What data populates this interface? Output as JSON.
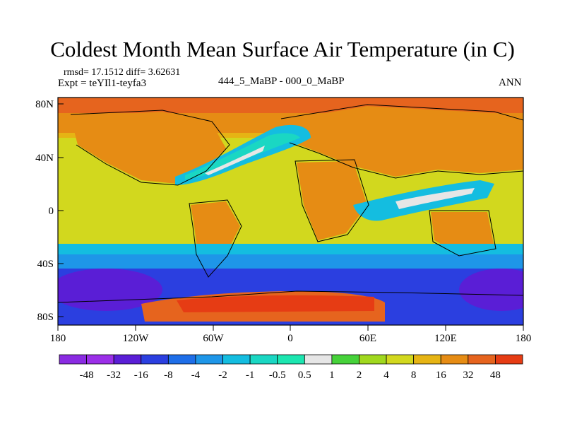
{
  "title": "Coldest Month Mean Surface Air Temperature (in C)",
  "stats": "rmsd= 17.1512 diff= 3.62631",
  "experiment_line": "Expt = teYIl1-teyfa3",
  "experiment_name": "444_5_MaBP - 000_0_MaBP",
  "season": "ANN",
  "lat_ticks": [
    "80N",
    "40N",
    "0",
    "40S",
    "80S"
  ],
  "lon_ticks": [
    "180",
    "120W",
    "60W",
    "0",
    "60E",
    "120E",
    "180"
  ],
  "colorbar": {
    "labels": [
      "-48",
      "-32",
      "-16",
      "-8",
      "-4",
      "-2",
      "-1",
      "-0.5",
      "0.5",
      "1",
      "2",
      "4",
      "8",
      "16",
      "32",
      "48"
    ],
    "colors": [
      "#9b2fe8",
      "#5a1ed6",
      "#2b3fe0",
      "#1e6ee8",
      "#1e96e8",
      "#14bde0",
      "#1ad7c3",
      "#1ce6b0",
      "#e6e6e6",
      "#46d23a",
      "#a0d81e",
      "#d2d81e",
      "#e6b414",
      "#e68c14",
      "#e6641e",
      "#e63c14"
    ]
  }
}
